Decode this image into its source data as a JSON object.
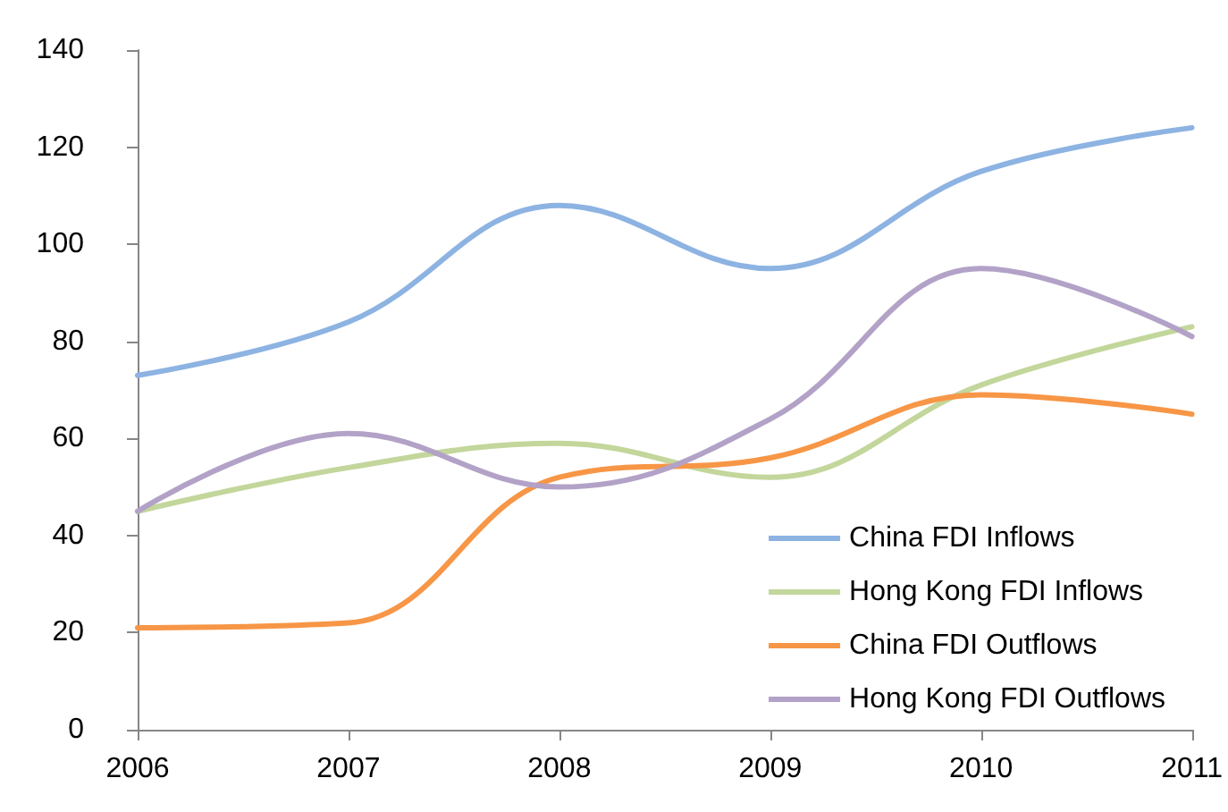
{
  "chart_data": {
    "type": "line",
    "x": [
      2006,
      2007,
      2008,
      2009,
      2010,
      2011
    ],
    "xlim": [
      2006,
      2011
    ],
    "xticks": [
      2006,
      2007,
      2008,
      2009,
      2010,
      2011
    ],
    "ylim": [
      0,
      140
    ],
    "yticks": [
      0,
      20,
      40,
      60,
      80,
      100,
      120,
      140
    ],
    "grid": false,
    "legend": "bottom right",
    "marker": "none",
    "line_style": "solid",
    "series": [
      {
        "name": "China FDI Inflows",
        "color": "#8db3e2",
        "values": [
          73,
          84,
          108,
          95,
          115,
          124
        ]
      },
      {
        "name": "Hong Kong FDI Inflows",
        "color": "#c3d69b",
        "values": [
          45,
          54,
          59,
          52,
          71,
          83
        ]
      },
      {
        "name": "China FDI Outflows",
        "color": "#f79646",
        "values": [
          21,
          22,
          52,
          56,
          69,
          65
        ]
      },
      {
        "name": "Hong Kong FDI Outflows",
        "color": "#b3a2c7",
        "values": [
          45,
          61,
          50,
          64,
          95,
          81
        ]
      }
    ]
  }
}
